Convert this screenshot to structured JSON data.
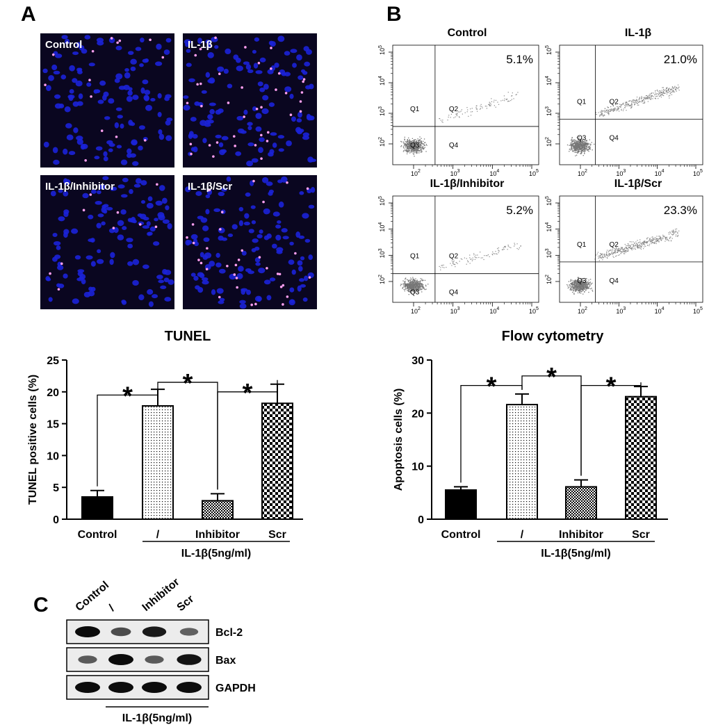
{
  "panels": {
    "a_letter": "A",
    "b_letter": "B",
    "c_letter": "C"
  },
  "tunel_images": [
    {
      "label": "Control",
      "positives": 14
    },
    {
      "label": "IL-1β",
      "positives": 38
    },
    {
      "label": "IL-1β/Inhibitor",
      "positives": 10
    },
    {
      "label": "IL-1β/Scr",
      "positives": 34
    }
  ],
  "flow_plots": [
    {
      "label": "Control",
      "percent": "5.1%"
    },
    {
      "label": "IL-1β",
      "percent": "21.0%"
    },
    {
      "label": "IL-1β/Inhibitor",
      "percent": "5.2%"
    },
    {
      "label": "IL-1β/Scr",
      "percent": "23.3%"
    }
  ],
  "flow_axis": {
    "tick_exponents": [
      "2",
      "3",
      "4",
      "5"
    ],
    "quadrants": [
      "Q1",
      "Q2",
      "Q3",
      "Q4"
    ]
  },
  "chart_data": [
    {
      "type": "bar",
      "title": "TUNEL",
      "ylabel": "TUNEL positive cells (%)",
      "xlabel": "",
      "categories": [
        "Control",
        "/",
        "Inhibitor",
        "Scr"
      ],
      "values": [
        3.5,
        17.8,
        2.9,
        18.2
      ],
      "errors": [
        1.0,
        2.6,
        1.1,
        3.0
      ],
      "ylim": [
        0,
        25
      ],
      "yticks": [
        0,
        5,
        10,
        15,
        20,
        25
      ],
      "group_label": "IL-1β(5ng/ml)",
      "significance": [
        "*",
        "*",
        "*"
      ],
      "fills": [
        "solid",
        "dots",
        "fine-checker",
        "checker"
      ]
    },
    {
      "type": "bar",
      "title": "Flow cytometry",
      "ylabel": "Apoptosis cells (%)",
      "xlabel": "",
      "categories": [
        "Control",
        "/",
        "Inhibitor",
        "Scr"
      ],
      "values": [
        5.5,
        21.6,
        6.1,
        23.1
      ],
      "errors": [
        0.6,
        2.0,
        1.3,
        1.9
      ],
      "ylim": [
        0,
        30
      ],
      "yticks": [
        0,
        10,
        20,
        30
      ],
      "group_label": "IL-1β(5ng/ml)",
      "significance": [
        "*",
        "*",
        "*"
      ],
      "fills": [
        "solid",
        "dots",
        "fine-checker",
        "checker"
      ]
    }
  ],
  "western": {
    "lanes": [
      "Control",
      "/",
      "Inhibitor",
      "Scr"
    ],
    "rows": [
      {
        "label": "Bcl-2",
        "intensity": [
          1.0,
          0.55,
          0.9,
          0.4
        ]
      },
      {
        "label": "Bax",
        "intensity": [
          0.45,
          1.0,
          0.45,
          0.95
        ]
      },
      {
        "label": "GAPDH",
        "intensity": [
          1.0,
          1.0,
          1.0,
          1.0
        ]
      }
    ],
    "group_label": "IL-1β(5ng/ml)"
  },
  "colors": {
    "nuclei": "#1b22d8",
    "background_micro": "#0a0620",
    "positive_nuclei": "#ff9ff0",
    "bars_solid": "#000000"
  }
}
